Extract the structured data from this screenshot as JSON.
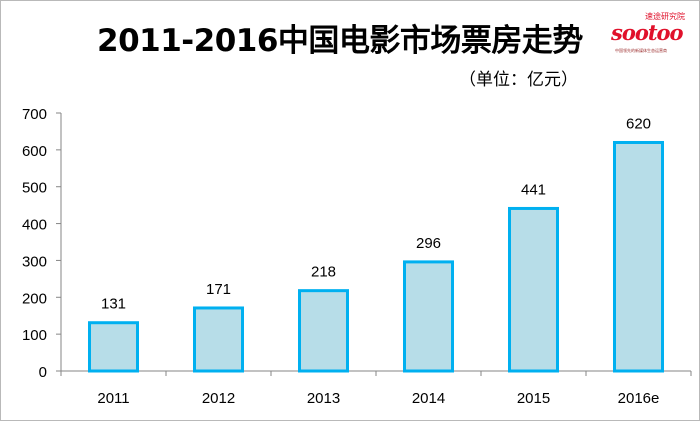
{
  "logo": {
    "top_text": "速途研究院",
    "word": "sootoo",
    "tagline": "中国领先的新媒体生态运营商"
  },
  "chart_data": {
    "type": "bar",
    "title": "2011-2016中国电影市场票房走势",
    "subtitle": "（单位：亿元）",
    "categories": [
      "2011",
      "2012",
      "2013",
      "2014",
      "2015",
      "2016e"
    ],
    "values": [
      131,
      171,
      218,
      296,
      441,
      620
    ],
    "ylim": [
      0,
      700
    ],
    "yticks": [
      "0",
      "100",
      "200",
      "300",
      "400",
      "500",
      "600",
      "700"
    ],
    "grid": false,
    "legend": "none",
    "colors": {
      "bar_fill": "#b7dde8",
      "bar_stroke": "#00b0f0",
      "axis": "#868686",
      "text": "#000000"
    }
  }
}
